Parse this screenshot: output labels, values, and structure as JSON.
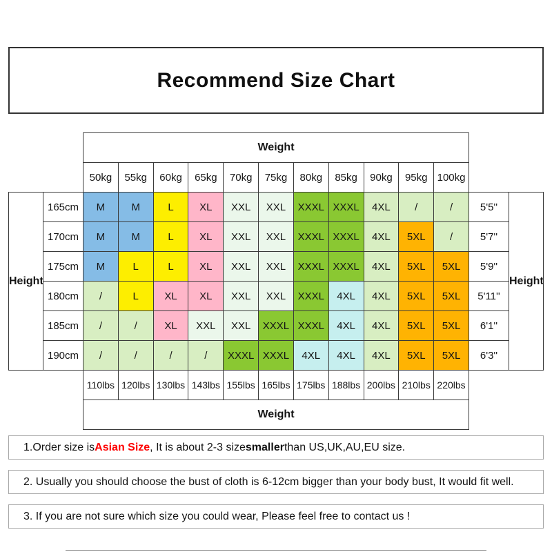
{
  "title": "Recommend Size Chart",
  "table": {
    "weight_label": "Weight",
    "height_label": "Height",
    "kg_labels": [
      "50kg",
      "55kg",
      "60kg",
      "65kg",
      "70kg",
      "75kg",
      "80kg",
      "85kg",
      "90kg",
      "95kg",
      "100kg"
    ],
    "lbs_labels": [
      "110lbs",
      "120lbs",
      "130lbs",
      "143lbs",
      "155lbs",
      "165lbs",
      "175lbs",
      "188lbs",
      "200lbs",
      "210lbs",
      "220lbs"
    ],
    "rows": [
      {
        "cm": "165cm",
        "ft": "5'5''",
        "cells": [
          {
            "t": "M",
            "c": "blue"
          },
          {
            "t": "M",
            "c": "blue"
          },
          {
            "t": "L",
            "c": "yellow"
          },
          {
            "t": "XL",
            "c": "pink"
          },
          {
            "t": "XXL",
            "c": "mint"
          },
          {
            "t": "XXL",
            "c": "mint"
          },
          {
            "t": "XXXL",
            "c": "green"
          },
          {
            "t": "XXXL",
            "c": "green"
          },
          {
            "t": "4XL",
            "c": "palegreen"
          },
          {
            "t": "/",
            "c": "palegreen"
          },
          {
            "t": "/",
            "c": "palegreen"
          }
        ]
      },
      {
        "cm": "170cm",
        "ft": "5'7''",
        "cells": [
          {
            "t": "M",
            "c": "blue"
          },
          {
            "t": "M",
            "c": "blue"
          },
          {
            "t": "L",
            "c": "yellow"
          },
          {
            "t": "XL",
            "c": "pink"
          },
          {
            "t": "XXL",
            "c": "mint"
          },
          {
            "t": "XXL",
            "c": "mint"
          },
          {
            "t": "XXXL",
            "c": "green"
          },
          {
            "t": "XXXL",
            "c": "green"
          },
          {
            "t": "4XL",
            "c": "palegreen"
          },
          {
            "t": "5XL",
            "c": "orange"
          },
          {
            "t": "/",
            "c": "palegreen"
          }
        ]
      },
      {
        "cm": "175cm",
        "ft": "5'9''",
        "cells": [
          {
            "t": "M",
            "c": "blue"
          },
          {
            "t": "L",
            "c": "yellow"
          },
          {
            "t": "L",
            "c": "yellow"
          },
          {
            "t": "XL",
            "c": "pink"
          },
          {
            "t": "XXL",
            "c": "mint"
          },
          {
            "t": "XXL",
            "c": "mint"
          },
          {
            "t": "XXXL",
            "c": "green"
          },
          {
            "t": "XXXL",
            "c": "green"
          },
          {
            "t": "4XL",
            "c": "palegreen"
          },
          {
            "t": "5XL",
            "c": "orange"
          },
          {
            "t": "5XL",
            "c": "orange"
          }
        ]
      },
      {
        "cm": "180cm",
        "ft": "5'11''",
        "cells": [
          {
            "t": "/",
            "c": "palegreen"
          },
          {
            "t": "L",
            "c": "yellow"
          },
          {
            "t": "XL",
            "c": "pink"
          },
          {
            "t": "XL",
            "c": "pink"
          },
          {
            "t": "XXL",
            "c": "mint"
          },
          {
            "t": "XXL",
            "c": "mint"
          },
          {
            "t": "XXXL",
            "c": "green"
          },
          {
            "t": "4XL",
            "c": "cyan"
          },
          {
            "t": "4XL",
            "c": "palegreen"
          },
          {
            "t": "5XL",
            "c": "orange"
          },
          {
            "t": "5XL",
            "c": "orange"
          }
        ]
      },
      {
        "cm": "185cm",
        "ft": "6'1''",
        "cells": [
          {
            "t": "/",
            "c": "palegreen"
          },
          {
            "t": "/",
            "c": "palegreen"
          },
          {
            "t": "XL",
            "c": "pink"
          },
          {
            "t": "XXL",
            "c": "mint"
          },
          {
            "t": "XXL",
            "c": "mint"
          },
          {
            "t": "XXXL",
            "c": "green"
          },
          {
            "t": "XXXL",
            "c": "green"
          },
          {
            "t": "4XL",
            "c": "cyan"
          },
          {
            "t": "4XL",
            "c": "palegreen"
          },
          {
            "t": "5XL",
            "c": "orange"
          },
          {
            "t": "5XL",
            "c": "orange"
          }
        ]
      },
      {
        "cm": "190cm",
        "ft": "6'3''",
        "cells": [
          {
            "t": "/",
            "c": "palegreen"
          },
          {
            "t": "/",
            "c": "palegreen"
          },
          {
            "t": "/",
            "c": "palegreen"
          },
          {
            "t": "/",
            "c": "palegreen"
          },
          {
            "t": "XXXL",
            "c": "green"
          },
          {
            "t": "XXXL",
            "c": "green"
          },
          {
            "t": "4XL",
            "c": "cyan"
          },
          {
            "t": "4XL",
            "c": "cyan"
          },
          {
            "t": "4XL",
            "c": "palegreen"
          },
          {
            "t": "5XL",
            "c": "orange"
          },
          {
            "t": "5XL",
            "c": "orange"
          }
        ]
      }
    ]
  },
  "colors": {
    "blue": "#85BCE6",
    "yellow": "#FDEE00",
    "pink": "#FFB6C9",
    "mint": "#EBF7EB",
    "green": "#8AC832",
    "palegreen": "#D8EEC2",
    "cyan": "#C6EFEF",
    "orange": "#FFB302"
  },
  "notes": [
    {
      "parts": [
        {
          "text": "1.Order size is ",
          "style": "normal"
        },
        {
          "text": "Asian Size",
          "style": "red-bold"
        },
        {
          "text": ", It is about 2-3 size ",
          "style": "normal"
        },
        {
          "text": "smaller",
          "style": "bold"
        },
        {
          "text": " than US,UK,AU,EU size.",
          "style": "normal"
        }
      ]
    },
    {
      "parts": [
        {
          "text": "2. Usually you should choose the bust of cloth is 6-12cm bigger than your body bust, It would fit well.",
          "style": "normal"
        }
      ]
    },
    {
      "parts": [
        {
          "text": "3. If you are not sure which size you could wear, Please feel free to contact us !",
          "style": "normal"
        }
      ]
    }
  ],
  "chart_data": {
    "type": "table",
    "title": "Recommend Size Chart",
    "x_axis": {
      "label": "Weight",
      "kg": [
        "50kg",
        "55kg",
        "60kg",
        "65kg",
        "70kg",
        "75kg",
        "80kg",
        "85kg",
        "90kg",
        "95kg",
        "100kg"
      ],
      "lbs": [
        "110lbs",
        "120lbs",
        "130lbs",
        "143lbs",
        "155lbs",
        "165lbs",
        "175lbs",
        "188lbs",
        "200lbs",
        "210lbs",
        "220lbs"
      ]
    },
    "y_axis": {
      "label": "Height",
      "cm": [
        "165cm",
        "170cm",
        "175cm",
        "180cm",
        "185cm",
        "190cm"
      ],
      "ft": [
        "5'5''",
        "5'7''",
        "5'9''",
        "5'11''",
        "6'1''",
        "6'3''"
      ]
    },
    "sizes": [
      [
        "M",
        "M",
        "L",
        "XL",
        "XXL",
        "XXL",
        "XXXL",
        "XXXL",
        "4XL",
        "/",
        "/"
      ],
      [
        "M",
        "M",
        "L",
        "XL",
        "XXL",
        "XXL",
        "XXXL",
        "XXXL",
        "4XL",
        "5XL",
        "/"
      ],
      [
        "M",
        "L",
        "L",
        "XL",
        "XXL",
        "XXL",
        "XXXL",
        "XXXL",
        "4XL",
        "5XL",
        "5XL"
      ],
      [
        "/",
        "L",
        "XL",
        "XL",
        "XXL",
        "XXL",
        "XXXL",
        "4XL",
        "4XL",
        "5XL",
        "5XL"
      ],
      [
        "/",
        "/",
        "XL",
        "XXL",
        "XXL",
        "XXXL",
        "XXXL",
        "4XL",
        "4XL",
        "5XL",
        "5XL"
      ],
      [
        "/",
        "/",
        "/",
        "/",
        "XXXL",
        "XXXL",
        "4XL",
        "4XL",
        "4XL",
        "5XL",
        "5XL"
      ]
    ]
  }
}
